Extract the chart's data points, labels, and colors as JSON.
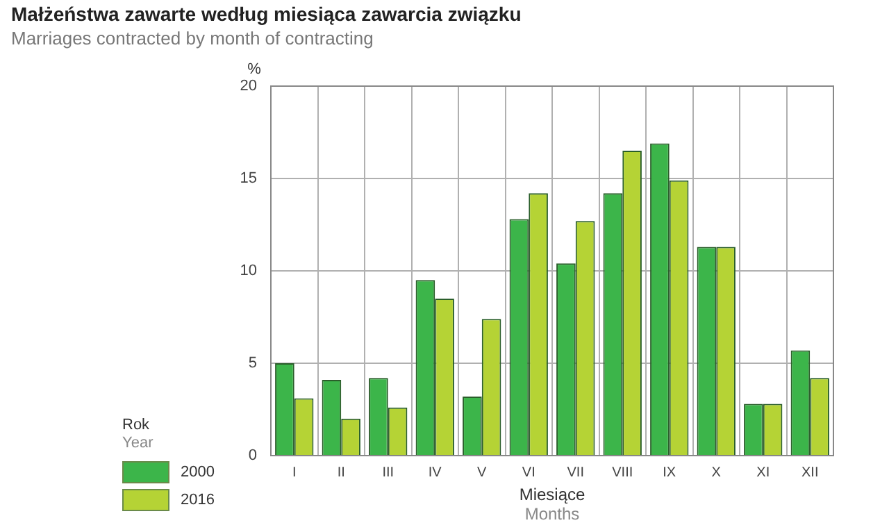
{
  "chart_data": {
    "type": "bar",
    "title": "Małżeństwa zawarte według miesiąca zawarcia związku",
    "subtitle": "Marriages contracted by month of contracting",
    "categories": [
      "I",
      "II",
      "III",
      "IV",
      "V",
      "VI",
      "VII",
      "VIII",
      "IX",
      "X",
      "XI",
      "XII"
    ],
    "series": [
      {
        "name": "2000",
        "color": "#3cb54a",
        "values": [
          5.0,
          4.1,
          4.2,
          9.5,
          3.2,
          12.8,
          10.4,
          14.2,
          16.9,
          11.3,
          2.8,
          5.7
        ]
      },
      {
        "name": "2016",
        "color": "#b5d335",
        "values": [
          3.1,
          2.0,
          2.6,
          8.5,
          7.4,
          14.2,
          12.7,
          16.5,
          14.9,
          11.3,
          2.8,
          4.2
        ]
      }
    ],
    "xlabel": "Miesiące\nMonths",
    "ylabel": "%",
    "legend_title": "Rok\nYear",
    "ylim": [
      0,
      20
    ],
    "yticks": [
      0,
      5,
      10,
      15,
      20
    ],
    "grid": true,
    "legend": "bottom left"
  }
}
